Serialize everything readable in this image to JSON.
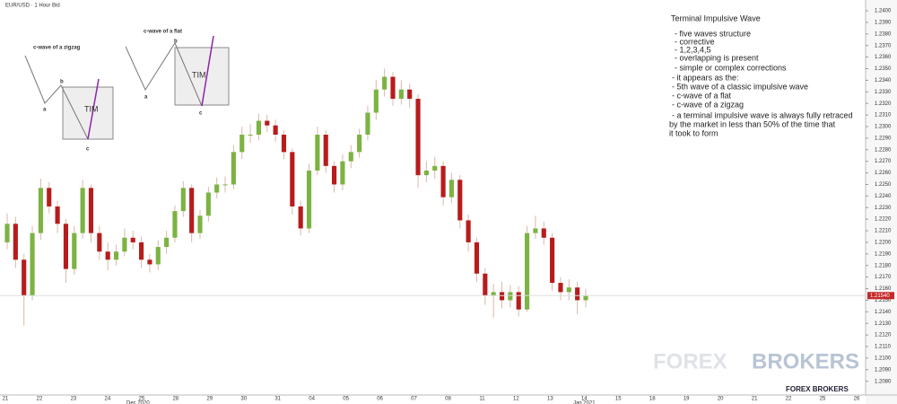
{
  "header": {
    "symbol": "EUR/USD · 1 Hour Bid"
  },
  "chart_data": {
    "type": "candlestick",
    "categories": [
      "21",
      "22",
      "23",
      "24",
      "25",
      "28",
      "29",
      "30",
      "31",
      "04",
      "05",
      "06",
      "07",
      "08",
      "11",
      "12",
      "13",
      "14",
      "15",
      "18",
      "19",
      "20",
      "21",
      "22",
      "25",
      "26"
    ],
    "period_labels": [
      "Dec 2020",
      "Jan 2021"
    ],
    "open": [
      1.22,
      1.2216,
      1.2185,
      1.2154,
      1.2208,
      1.2247,
      1.2231,
      1.2216,
      1.2177,
      1.2208,
      1.2247,
      1.2208,
      1.2192,
      1.2185,
      1.2192,
      1.2204,
      1.22,
      1.2185,
      1.2181,
      1.2196,
      1.2204,
      1.2227,
      1.2247,
      1.2208,
      1.2223,
      1.2243,
      1.225,
      1.225,
      1.2278,
      1.2293,
      1.2293,
      1.2305,
      1.2301,
      1.2293,
      1.2278,
      1.2231,
      1.2212,
      1.2262,
      1.2293,
      1.2266,
      1.225,
      1.227,
      1.2278,
      1.2293,
      1.2312,
      1.2332,
      1.2343,
      1.2324,
      1.2332,
      1.2324,
      1.2258,
      1.2262,
      1.2266,
      1.2239,
      1.2254,
      1.2219,
      1.22,
      1.2173,
      1.2154,
      1.2157,
      1.215,
      1.2157,
      1.2142,
      1.2208,
      1.2212,
      1.2204,
      1.2165,
      1.2157,
      1.2161,
      1.215
    ],
    "high": [
      1.2225,
      1.2222,
      1.219,
      1.2214,
      1.2255,
      1.2252,
      1.2236,
      1.222,
      1.2214,
      1.2254,
      1.225,
      1.2214,
      1.22,
      1.2198,
      1.2212,
      1.221,
      1.2205,
      1.219,
      1.2202,
      1.221,
      1.2232,
      1.2253,
      1.225,
      1.2228,
      1.2248,
      1.2256,
      1.2257,
      1.2284,
      1.23,
      1.2302,
      1.2311,
      1.231,
      1.2306,
      1.2297,
      1.2281,
      1.2236,
      1.2268,
      1.23,
      1.2297,
      1.227,
      1.2276,
      1.2284,
      1.2298,
      1.2318,
      1.234,
      1.235,
      1.2347,
      1.234,
      1.2337,
      1.2328,
      1.227,
      1.2274,
      1.227,
      1.226,
      1.2258,
      1.2224,
      1.2204,
      1.2178,
      1.2164,
      1.2166,
      1.2163,
      1.2162,
      1.2214,
      1.2223,
      1.2218,
      1.2208,
      1.217,
      1.2168,
      1.2166,
      1.216
    ],
    "low": [
      1.2194,
      1.2178,
      1.2128,
      1.215,
      1.2202,
      1.2225,
      1.2208,
      1.2165,
      1.2172,
      1.2203,
      1.22,
      1.2185,
      1.2176,
      1.218,
      1.2188,
      1.2194,
      1.2178,
      1.2174,
      1.2176,
      1.219,
      1.22,
      1.2222,
      1.22,
      1.2203,
      1.2218,
      1.2238,
      1.2243,
      1.2246,
      1.2272,
      1.2286,
      1.2288,
      1.2295,
      1.2287,
      1.2272,
      1.2224,
      1.2206,
      1.2208,
      1.2258,
      1.226,
      1.2243,
      1.2245,
      1.2264,
      1.2273,
      1.2288,
      1.2306,
      1.2326,
      1.2318,
      1.2319,
      1.2316,
      1.2247,
      1.2252,
      1.2255,
      1.2232,
      1.2234,
      1.2212,
      1.2192,
      1.2166,
      1.2146,
      1.2135,
      1.2143,
      1.2144,
      1.2136,
      1.214,
      1.2203,
      1.2198,
      1.2158,
      1.215,
      1.215,
      1.2138,
      1.2144
    ],
    "close": [
      1.2216,
      1.2185,
      1.2154,
      1.2208,
      1.2247,
      1.2231,
      1.2216,
      1.2177,
      1.2208,
      1.2247,
      1.2208,
      1.2192,
      1.2185,
      1.2192,
      1.2204,
      1.22,
      1.2185,
      1.2181,
      1.2196,
      1.2204,
      1.2227,
      1.2247,
      1.2208,
      1.2223,
      1.2243,
      1.225,
      1.225,
      1.2278,
      1.2293,
      1.2293,
      1.2305,
      1.2301,
      1.2293,
      1.2278,
      1.2231,
      1.2212,
      1.2262,
      1.2293,
      1.2266,
      1.225,
      1.227,
      1.2278,
      1.2293,
      1.2312,
      1.2332,
      1.2343,
      1.2324,
      1.2332,
      1.2324,
      1.2258,
      1.2262,
      1.2266,
      1.2239,
      1.2254,
      1.2219,
      1.22,
      1.2173,
      1.2154,
      1.2157,
      1.215,
      1.2157,
      1.2142,
      1.2208,
      1.2212,
      1.2204,
      1.2165,
      1.2157,
      1.2161,
      1.215,
      1.2154
    ],
    "up_color": "#7cb342",
    "down_color": "#b71c1c",
    "last_price": {
      "value": 1.2154,
      "label": "1.21540"
    },
    "ylim": [
      1.2072,
      1.2407
    ],
    "yticks": [
      {
        "value": 1.208,
        "label": "1.2080"
      },
      {
        "value": 1.209,
        "label": "1.2090"
      },
      {
        "value": 1.21,
        "label": "1.2100"
      },
      {
        "value": 1.211,
        "label": "1.2110"
      },
      {
        "value": 1.212,
        "label": "1.2120"
      },
      {
        "value": 1.213,
        "label": "1.2130"
      },
      {
        "value": 1.214,
        "label": "1.2140"
      },
      {
        "value": 1.215,
        "label": "1.2150"
      },
      {
        "value": 1.216,
        "label": "1.2160"
      },
      {
        "value": 1.217,
        "label": "1.2170"
      },
      {
        "value": 1.218,
        "label": "1.2180"
      },
      {
        "value": 1.219,
        "label": "1.2190"
      },
      {
        "value": 1.22,
        "label": "1.2200"
      },
      {
        "value": 1.221,
        "label": "1.2210"
      },
      {
        "value": 1.222,
        "label": "1.2220"
      },
      {
        "value": 1.223,
        "label": "1.2230"
      },
      {
        "value": 1.224,
        "label": "1.2240"
      },
      {
        "value": 1.225,
        "label": "1.2250"
      },
      {
        "value": 1.226,
        "label": "1.2260"
      },
      {
        "value": 1.227,
        "label": "1.2270"
      },
      {
        "value": 1.228,
        "label": "1.2280"
      },
      {
        "value": 1.229,
        "label": "1.2290"
      },
      {
        "value": 1.23,
        "label": "1.2300"
      },
      {
        "value": 1.231,
        "label": "1.2310"
      },
      {
        "value": 1.232,
        "label": "1.2320"
      },
      {
        "value": 1.233,
        "label": "1.2330"
      },
      {
        "value": 1.234,
        "label": "1.2340"
      },
      {
        "value": 1.235,
        "label": "1.2350"
      },
      {
        "value": 1.236,
        "label": "1.2360"
      },
      {
        "value": 1.237,
        "label": "1.2370"
      },
      {
        "value": 1.238,
        "label": "1.2380"
      },
      {
        "value": 1.239,
        "label": "1.2390"
      },
      {
        "value": 1.24,
        "label": "1.2400"
      }
    ]
  },
  "diagrams": [
    {
      "title": "c-wave of a zigzag",
      "a": "a",
      "b": "b",
      "c": "c",
      "box": "TIM"
    },
    {
      "title": "c-wave of a flat",
      "a": "a",
      "b": "b",
      "c": "c",
      "box": "TIM"
    }
  ],
  "notes": {
    "title": "Terminal Impulsive Wave",
    "lines": [
      "- five waves structure",
      "- corrective",
      "- 1,2,3,4,5",
      "- overlapping is present",
      "- simple or complex corrections",
      "- it appears as the:",
      "- 5th wave of a classic impulsive wave",
      "- c-wave of a flat",
      "- c-wave of a zigzag",
      "- a terminal impulsive wave is always fully retraced",
      "by the market in less than 50% of the time that",
      "it took to form"
    ]
  },
  "watermark": {
    "brand_a": "FOREX",
    "brand_b": "BROKERS",
    "footer": "FOREX BROKERS"
  }
}
